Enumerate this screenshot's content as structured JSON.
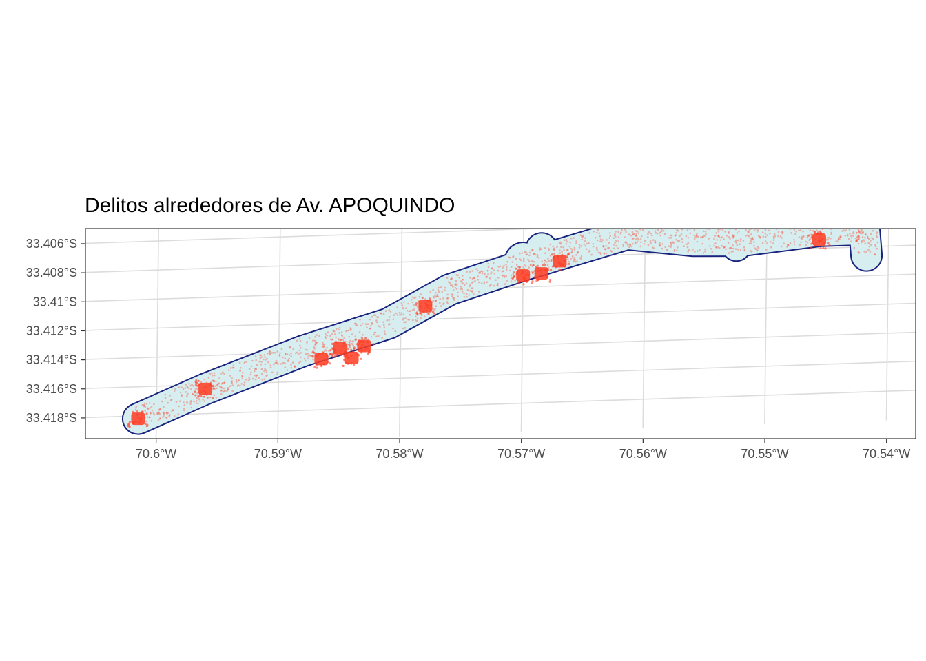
{
  "title": "Delitos alrededores de Av. APOQUINDO",
  "chart_data": {
    "type": "scatter",
    "title": "Delitos alrededores de Av. APOQUINDO",
    "xlabel": "",
    "ylabel": "",
    "x_ticks": [
      {
        "value": -70.6,
        "label": "70.6°W"
      },
      {
        "value": -70.59,
        "label": "70.59°W"
      },
      {
        "value": -70.58,
        "label": "70.58°W"
      },
      {
        "value": -70.57,
        "label": "70.57°W"
      },
      {
        "value": -70.56,
        "label": "70.56°W"
      },
      {
        "value": -70.55,
        "label": "70.55°W"
      },
      {
        "value": -70.54,
        "label": "70.54°W"
      }
    ],
    "y_ticks": [
      {
        "value": -33.406,
        "label": "33.406°S"
      },
      {
        "value": -33.408,
        "label": "33.408°S"
      },
      {
        "value": -33.41,
        "label": "33.41°S"
      },
      {
        "value": -33.412,
        "label": "33.412°S"
      },
      {
        "value": -33.414,
        "label": "33.414°S"
      },
      {
        "value": -33.416,
        "label": "33.416°S"
      },
      {
        "value": -33.418,
        "label": "33.418°S"
      }
    ],
    "xlim": [
      -70.606,
      -70.538
    ],
    "ylim": [
      -33.4193,
      -33.4052
    ],
    "grid": true,
    "colors": {
      "buffer_fill": "#d6eef0",
      "buffer_outline": "#1a237e",
      "points": "#ff3b22",
      "grid": "#dcdcdc"
    },
    "street_axis": [
      [
        -70.6015,
        -33.4182
      ],
      [
        -70.596,
        -33.4163
      ],
      [
        -70.588,
        -33.4139
      ],
      [
        -70.581,
        -33.4122
      ],
      [
        -70.576,
        -33.41
      ],
      [
        -70.57,
        -33.4085
      ],
      [
        -70.5615,
        -33.4066
      ],
      [
        -70.556,
        -33.4072
      ],
      [
        -70.552,
        -33.4073
      ],
      [
        -70.5457,
        -33.4068
      ],
      [
        -70.542,
        -33.4068
      ],
      [
        -70.5418,
        -33.4086
      ]
    ],
    "hotspots": [
      {
        "lon": -70.6015,
        "lat": -33.4182
      },
      {
        "lon": -70.596,
        "lat": -33.4163
      },
      {
        "lon": -70.5865,
        "lat": -33.4145
      },
      {
        "lon": -70.585,
        "lat": -33.4138
      },
      {
        "lon": -70.584,
        "lat": -33.4145
      },
      {
        "lon": -70.583,
        "lat": -33.4137
      },
      {
        "lon": -70.578,
        "lat": -33.4111
      },
      {
        "lon": -70.57,
        "lat": -33.4092
      },
      {
        "lon": -70.5685,
        "lat": -33.4091
      },
      {
        "lon": -70.567,
        "lat": -33.4083
      },
      {
        "lon": -70.5457,
        "lat": -33.4074
      }
    ]
  }
}
